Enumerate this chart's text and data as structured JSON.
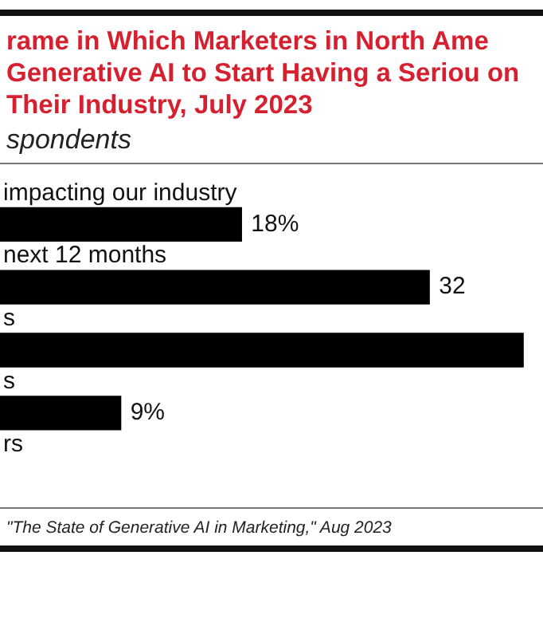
{
  "chart_data": {
    "type": "bar",
    "orientation": "horizontal",
    "title": "rame in Which Marketers in North Ame Generative AI to Start Having a Seriou on Their Industry, July 2023",
    "subtitle": "spondents",
    "categories": [
      "impacting our industry",
      "next 12 months",
      "s",
      "s",
      "rs"
    ],
    "values": [
      18,
      32,
      39,
      9,
      null
    ],
    "value_labels": [
      "18%",
      "32",
      null,
      "9%",
      null
    ],
    "color": "#000000",
    "annotations": [
      "\"The State of Generative AI in Marketing,\" Aug 2023"
    ]
  }
}
